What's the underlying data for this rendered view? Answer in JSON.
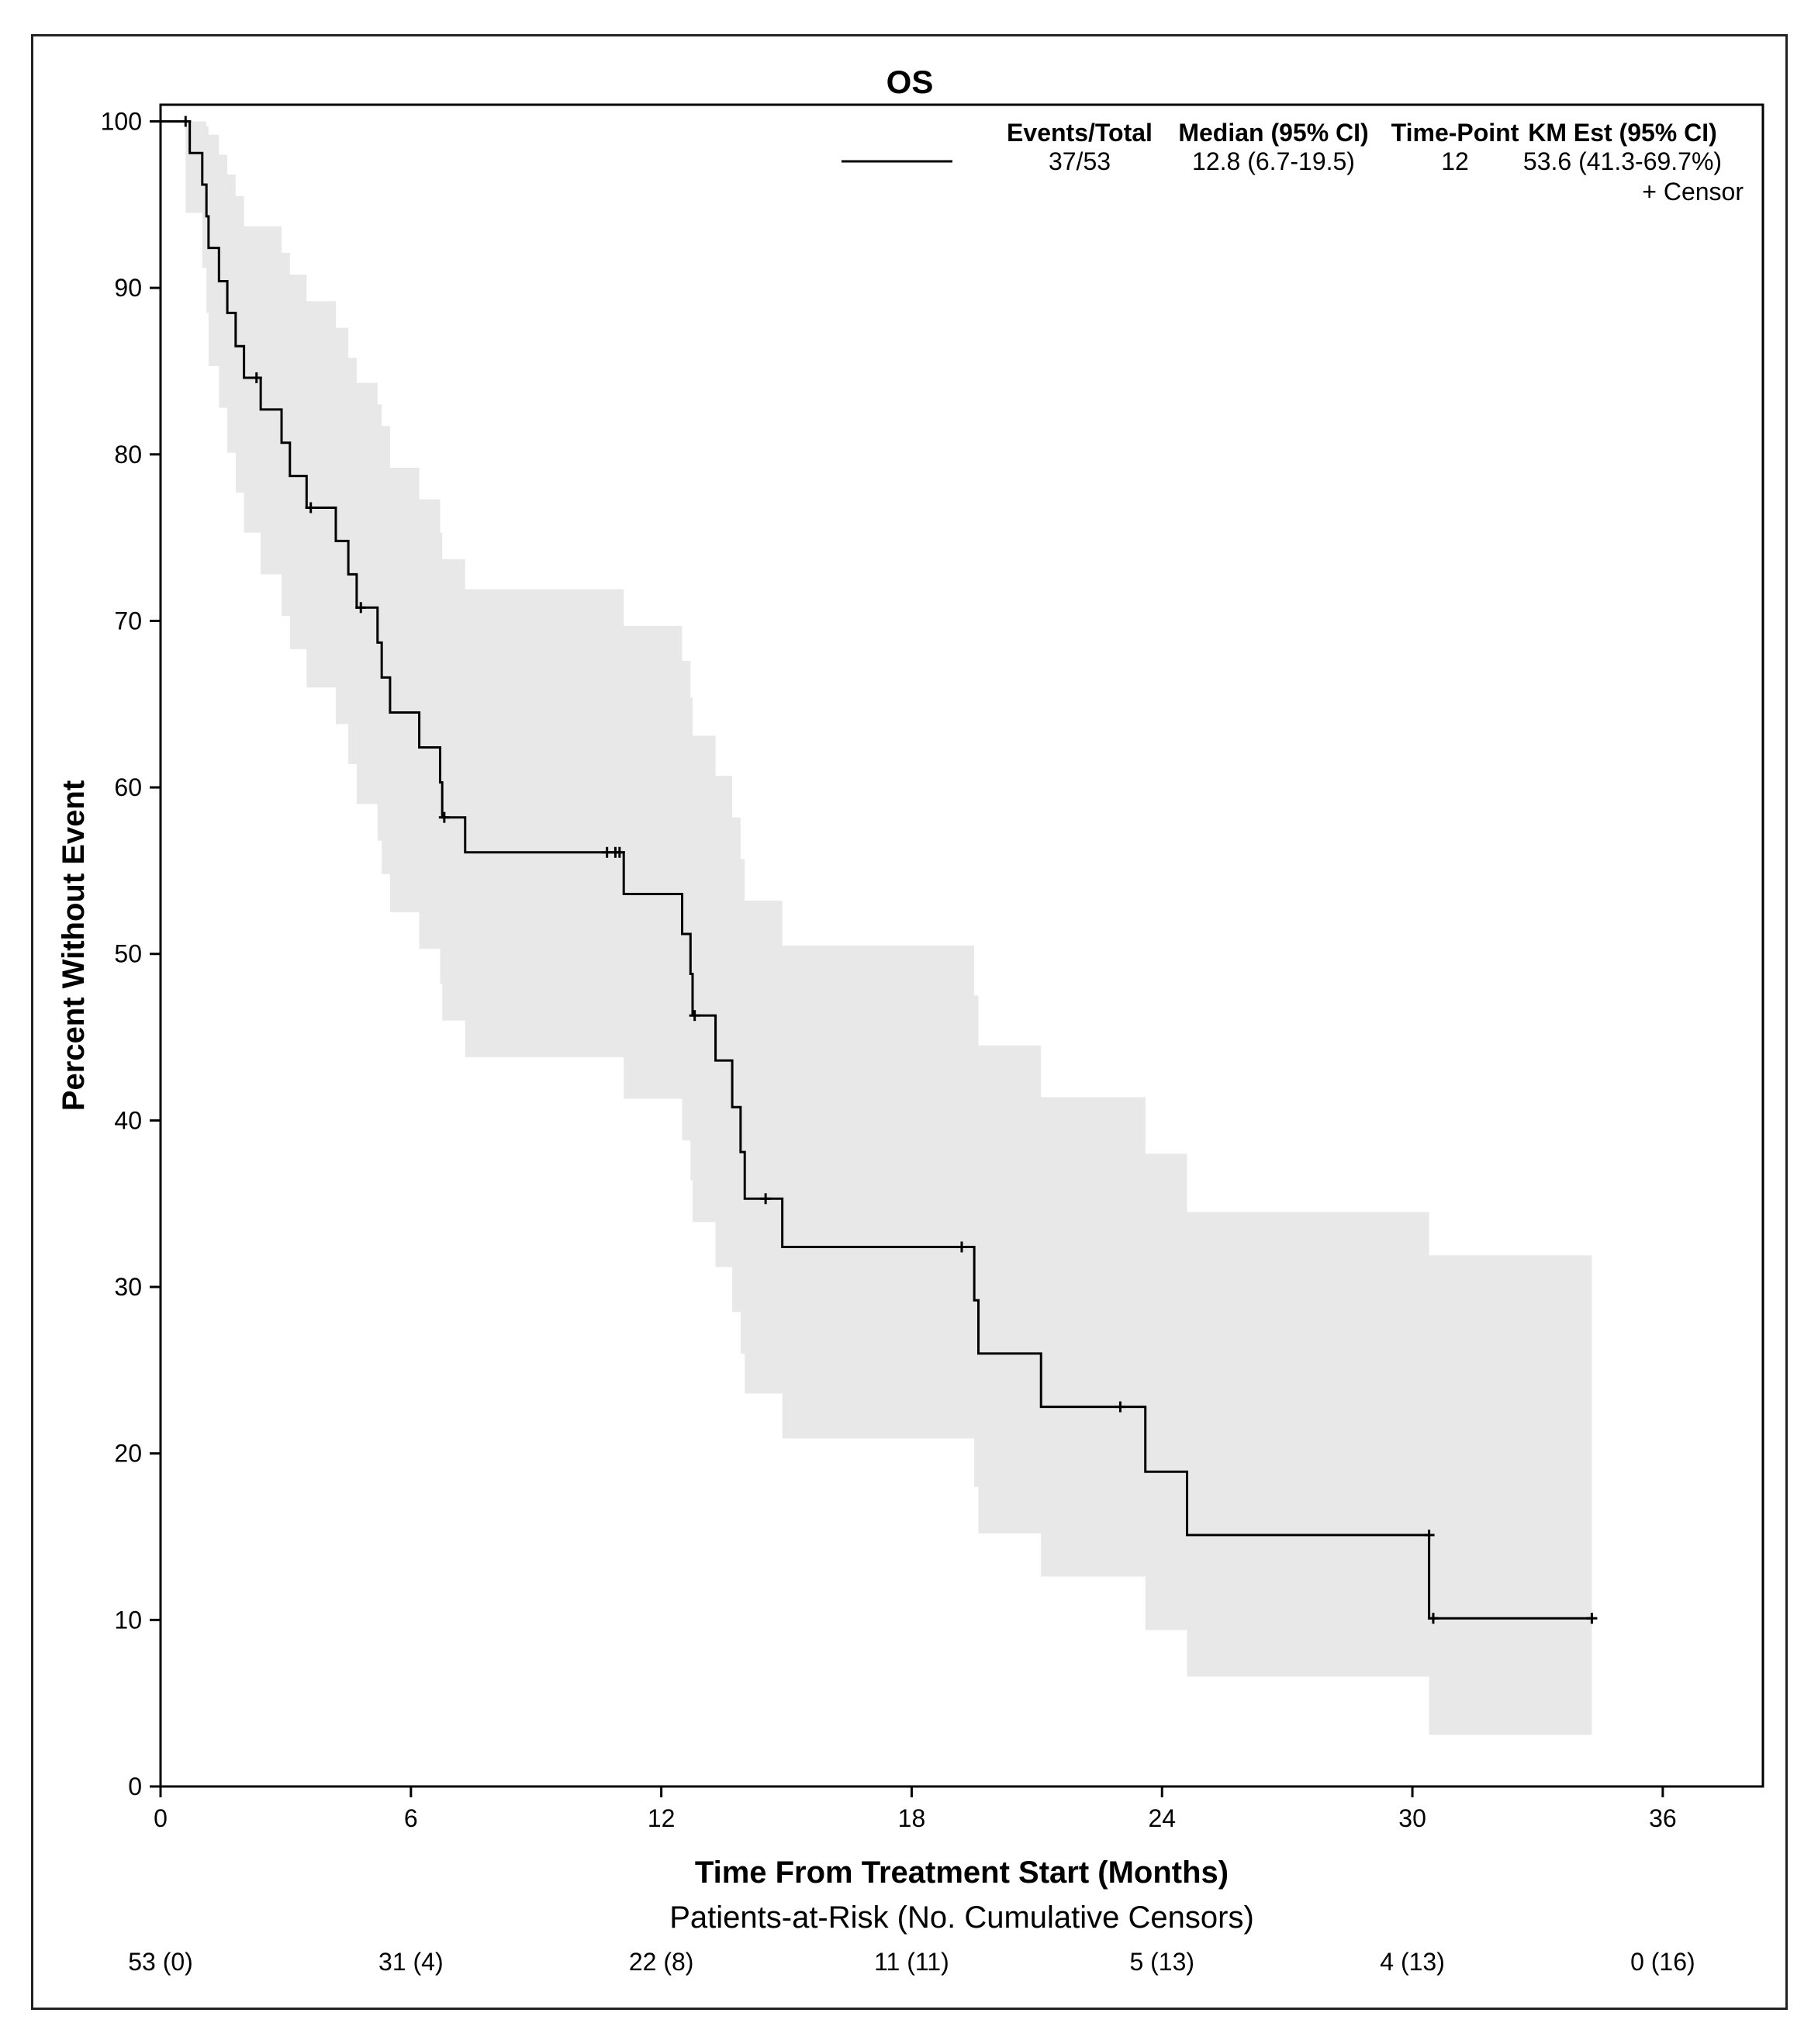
{
  "chart_data": {
    "type": "km-survival",
    "title": "OS",
    "xlabel": "Time From Treatment Start (Months)",
    "ylabel": "Percent Without Event",
    "xlim": [
      0,
      38.4
    ],
    "ylim": [
      0,
      101
    ],
    "xticks": [
      0,
      6,
      12,
      18,
      24,
      30,
      36
    ],
    "yticks": [
      0,
      10,
      20,
      30,
      40,
      50,
      60,
      70,
      80,
      90,
      100
    ],
    "colors": {
      "line": "#000000",
      "band": "#e8e8e8",
      "axis": "#000000"
    },
    "legend": {
      "headers": [
        "Events/Total",
        "Median (95% CI)",
        "Time-Point",
        "KM Est (95% CI)"
      ],
      "row": [
        "37/53",
        "12.8 (6.7-19.5)",
        "12",
        "53.6 (41.3-69.7%)"
      ],
      "censor_label": "+ Censor"
    },
    "risk_table": {
      "title": "Patients-at-Risk (No. Cumulative Censors)",
      "times": [
        0,
        6,
        12,
        18,
        24,
        30,
        36
      ],
      "values": [
        "53 (0)",
        "31 (4)",
        "22 (8)",
        "11 (11)",
        "5 (13)",
        "4 (13)",
        "0 (16)"
      ]
    },
    "steps": [
      [
        0,
        100
      ],
      [
        0.6,
        100
      ],
      [
        0.7,
        98.1
      ],
      [
        1.0,
        96.2
      ],
      [
        1.1,
        94.3
      ],
      [
        1.15,
        92.4
      ],
      [
        1.4,
        90.4
      ],
      [
        1.6,
        88.5
      ],
      [
        1.8,
        86.5
      ],
      [
        2.0,
        84.6
      ],
      [
        2.4,
        82.7
      ],
      [
        2.9,
        80.7
      ],
      [
        3.1,
        78.7
      ],
      [
        3.5,
        76.8
      ],
      [
        4.2,
        74.8
      ],
      [
        4.5,
        72.8
      ],
      [
        4.7,
        70.8
      ],
      [
        5.2,
        68.7
      ],
      [
        5.3,
        66.6
      ],
      [
        5.5,
        64.5
      ],
      [
        6.2,
        62.4
      ],
      [
        6.7,
        60.3
      ],
      [
        6.75,
        58.2
      ],
      [
        7.3,
        56.1
      ],
      [
        11.1,
        53.6
      ],
      [
        12.5,
        51.2
      ],
      [
        12.7,
        48.8
      ],
      [
        12.75,
        46.3
      ],
      [
        13.3,
        43.6
      ],
      [
        13.7,
        40.8
      ],
      [
        13.9,
        38.1
      ],
      [
        14.0,
        35.3
      ],
      [
        14.9,
        32.4
      ],
      [
        19.5,
        29.2
      ],
      [
        19.6,
        26.0
      ],
      [
        21.1,
        22.8
      ],
      [
        23.6,
        18.9
      ],
      [
        24.6,
        15.1
      ],
      [
        30.4,
        10.1
      ],
      [
        34.3,
        10.1
      ]
    ],
    "ci_steps": [
      [
        0,
        100,
        100
      ],
      [
        0.6,
        94.5,
        100
      ],
      [
        1.0,
        91.2,
        100
      ],
      [
        1.1,
        88.5,
        99.7
      ],
      [
        1.15,
        85.3,
        99.2
      ],
      [
        1.4,
        82.8,
        98.0
      ],
      [
        1.6,
        80.1,
        96.8
      ],
      [
        1.8,
        77.7,
        95.5
      ],
      [
        2.0,
        75.3,
        93.7
      ],
      [
        2.4,
        72.8,
        93.7
      ],
      [
        2.9,
        70.3,
        92.1
      ],
      [
        3.1,
        68.3,
        90.8
      ],
      [
        3.5,
        66.0,
        89.2
      ],
      [
        4.2,
        63.8,
        87.6
      ],
      [
        4.5,
        61.4,
        85.8
      ],
      [
        4.7,
        59.0,
        84.3
      ],
      [
        5.2,
        56.8,
        83.0
      ],
      [
        5.3,
        54.8,
        81.7
      ],
      [
        5.5,
        52.5,
        79.2
      ],
      [
        6.2,
        50.3,
        77.3
      ],
      [
        6.7,
        48.2,
        75.3
      ],
      [
        6.75,
        46.0,
        73.7
      ],
      [
        7.3,
        43.8,
        71.9
      ],
      [
        11.1,
        41.3,
        69.7
      ],
      [
        12.5,
        38.8,
        67.6
      ],
      [
        12.7,
        36.4,
        65.4
      ],
      [
        12.75,
        33.9,
        63.1
      ],
      [
        13.3,
        31.2,
        60.7
      ],
      [
        13.7,
        28.5,
        58.2
      ],
      [
        13.9,
        26.0,
        55.7
      ],
      [
        14.0,
        23.6,
        53.2
      ],
      [
        14.9,
        20.9,
        50.5
      ],
      [
        19.5,
        18.0,
        47.5
      ],
      [
        19.6,
        15.2,
        44.5
      ],
      [
        21.1,
        12.6,
        41.4
      ],
      [
        23.6,
        9.4,
        38.0
      ],
      [
        24.6,
        6.6,
        34.5
      ],
      [
        30.4,
        3.1,
        31.9
      ],
      [
        34.3,
        3.1,
        31.9
      ]
    ],
    "censors": [
      [
        0.6,
        100
      ],
      [
        2.3,
        84.6
      ],
      [
        3.6,
        76.8
      ],
      [
        4.8,
        70.8
      ],
      [
        6.8,
        58.2
      ],
      [
        10.7,
        56.1
      ],
      [
        10.9,
        56.1
      ],
      [
        11.0,
        56.1
      ],
      [
        12.8,
        46.3
      ],
      [
        14.5,
        35.3
      ],
      [
        19.2,
        32.4
      ],
      [
        23.0,
        22.8
      ],
      [
        30.4,
        15.1
      ],
      [
        30.5,
        10.1
      ],
      [
        34.3,
        10.1
      ]
    ]
  }
}
